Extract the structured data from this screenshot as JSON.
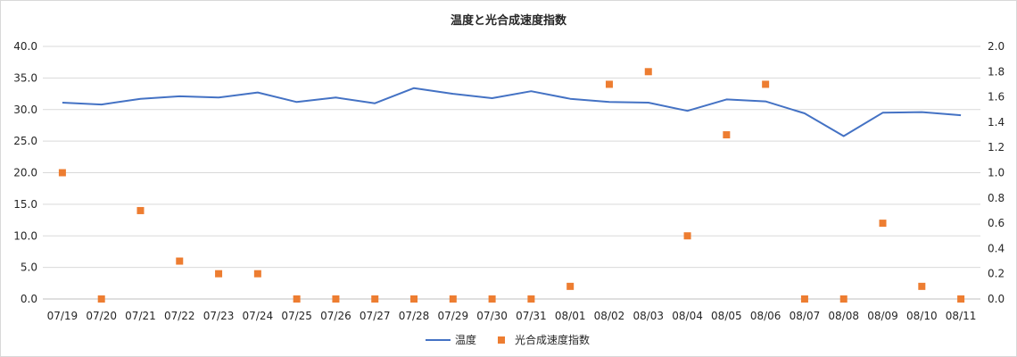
{
  "chart_data": {
    "type": "line",
    "title": "温度と光合成速度指数",
    "categories": [
      "07/19",
      "07/20",
      "07/21",
      "07/22",
      "07/23",
      "07/24",
      "07/25",
      "07/26",
      "07/27",
      "07/28",
      "07/29",
      "07/30",
      "07/31",
      "08/01",
      "08/02",
      "08/03",
      "08/04",
      "08/05",
      "08/06",
      "08/07",
      "08/08",
      "08/09",
      "08/10",
      "08/11"
    ],
    "series": [
      {
        "name": "温度",
        "type": "line",
        "axis": "left",
        "color": "#4472C4",
        "values": [
          31.1,
          30.8,
          31.7,
          32.1,
          31.9,
          32.7,
          31.2,
          31.9,
          31.0,
          33.4,
          32.5,
          31.8,
          32.9,
          31.7,
          31.2,
          31.1,
          29.8,
          31.6,
          31.3,
          29.4,
          25.8,
          29.5,
          29.6,
          29.1
        ]
      },
      {
        "name": "光合成速度指数",
        "type": "scatter",
        "axis": "right",
        "color": "#ED7D31",
        "values": [
          1.0,
          0.0,
          0.7,
          0.3,
          0.2,
          0.2,
          0.0,
          0.0,
          0.0,
          0.0,
          0.0,
          0.0,
          0.0,
          0.1,
          1.7,
          1.8,
          0.5,
          1.3,
          1.7,
          0.0,
          0.0,
          0.6,
          0.1,
          0.0
        ]
      }
    ],
    "y_left": {
      "min": 0,
      "max": 40,
      "step": 5,
      "ticks": [
        "0.0",
        "5.0",
        "10.0",
        "15.0",
        "20.0",
        "25.0",
        "30.0",
        "35.0",
        "40.0"
      ]
    },
    "y_right": {
      "min": 0,
      "max": 2,
      "step": 0.2,
      "ticks": [
        "0.0",
        "0.2",
        "0.4",
        "0.6",
        "0.8",
        "1.0",
        "1.2",
        "1.4",
        "1.6",
        "1.8",
        "2.0"
      ]
    },
    "grid": true,
    "legend_position": "bottom",
    "gridline_color": "#d9d9d9"
  }
}
